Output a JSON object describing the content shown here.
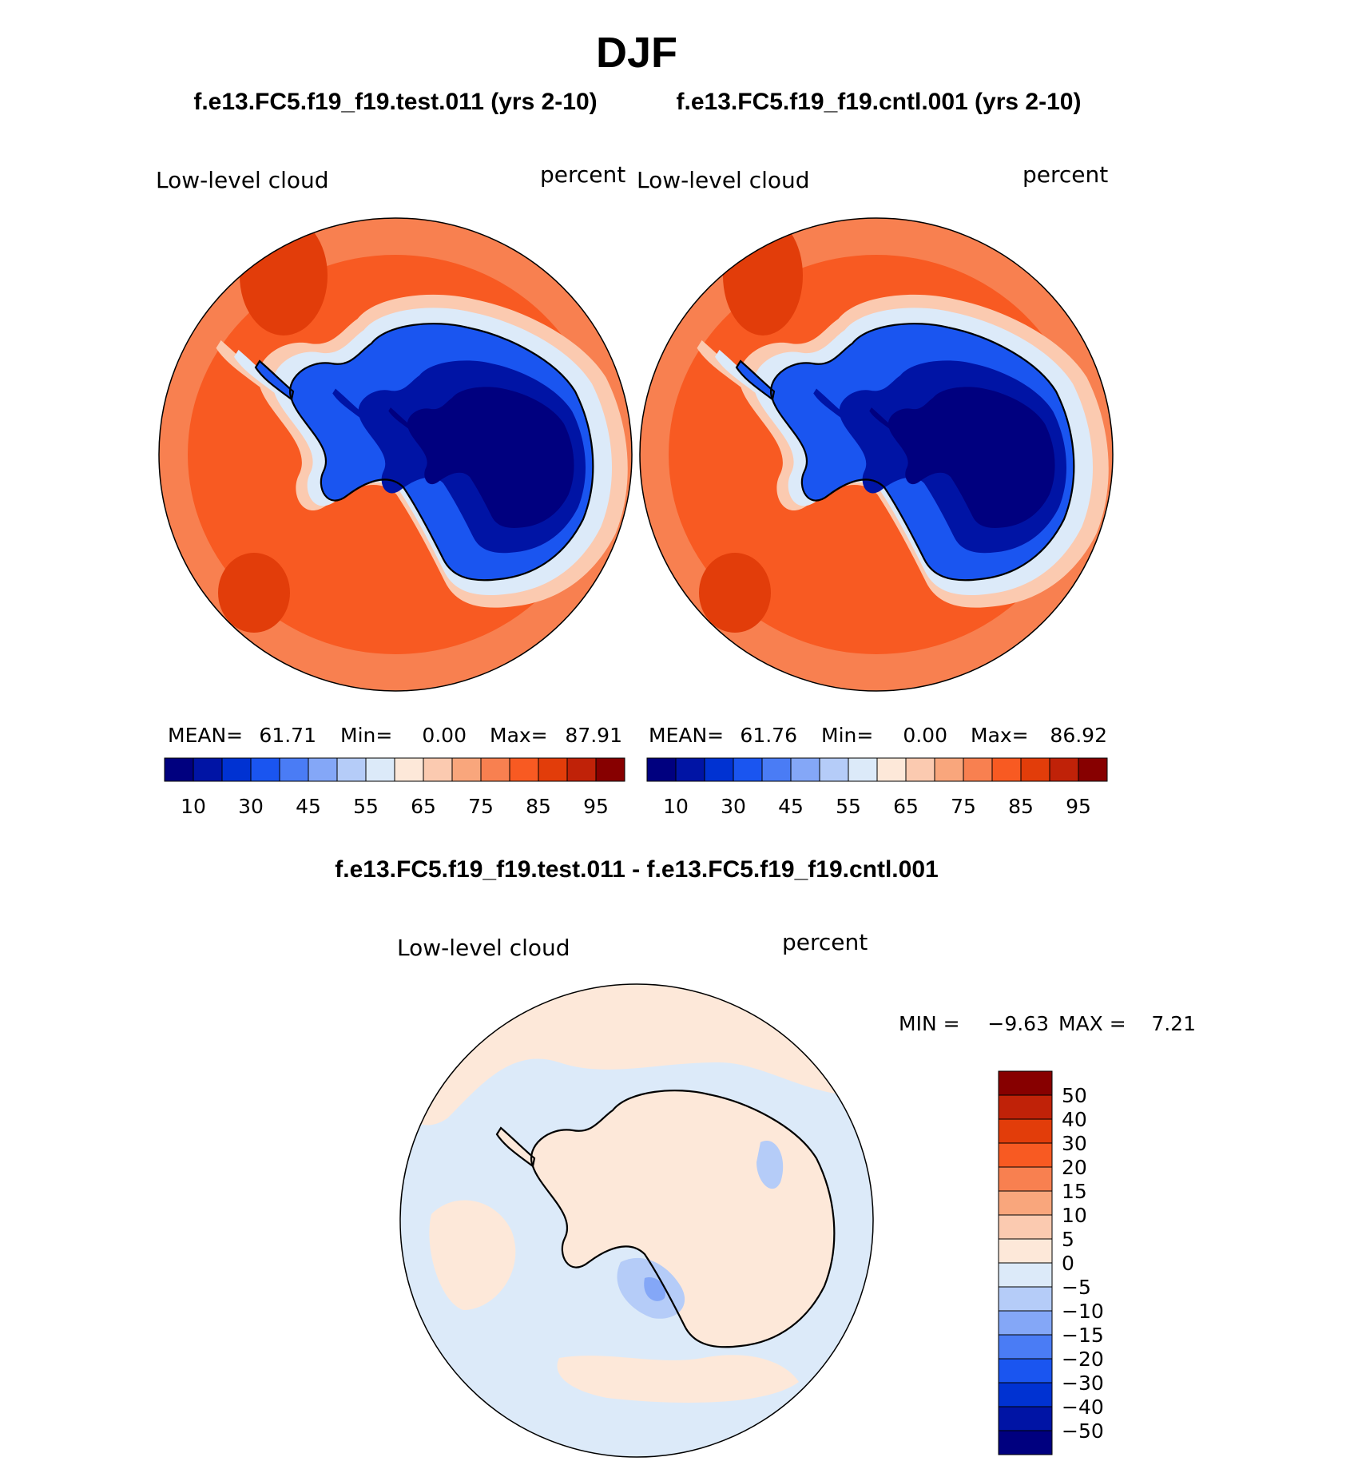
{
  "title": "DJF",
  "panels": [
    {
      "id": "test",
      "case_title": "f.e13.FC5.f19_f19.test.011 (yrs 2-10)",
      "variable": "Low-level cloud",
      "units": "percent",
      "stats": {
        "mean_label": "MEAN=",
        "mean": "61.71",
        "min_label": "Min=",
        "min": "0.00",
        "max_label": "Max=",
        "max": "87.91"
      }
    },
    {
      "id": "cntl",
      "case_title": "f.e13.FC5.f19_f19.cntl.001 (yrs 2-10)",
      "variable": "Low-level cloud",
      "units": "percent",
      "stats": {
        "mean_label": "MEAN=",
        "mean": "61.76",
        "min_label": "Min=",
        "min": "0.00",
        "max_label": "Max=",
        "max": "86.92"
      }
    }
  ],
  "colorbar_abs": {
    "colors": [
      "#00007f",
      "#0014a5",
      "#0032d2",
      "#1a55f0",
      "#4a7cf5",
      "#84a7f7",
      "#b5ccf8",
      "#dceaf9",
      "#fde8d9",
      "#fbcab0",
      "#f9a67c",
      "#f88050",
      "#f85a22",
      "#e23d0a",
      "#c02208",
      "#870000"
    ],
    "labels": [
      "10",
      "30",
      "45",
      "55",
      "65",
      "75",
      "85",
      "95"
    ]
  },
  "difference": {
    "title": "f.e13.FC5.f19_f19.test.011 - f.e13.FC5.f19_f19.cntl.001",
    "variable": "Low-level cloud",
    "units": "percent",
    "min_label": "MIN =",
    "min": "−9.63",
    "max_label": "MAX =",
    "max": "7.21",
    "colorbar": {
      "colors": [
        "#870000",
        "#c02208",
        "#e23d0a",
        "#f85a22",
        "#f88050",
        "#f9a67c",
        "#fbcab0",
        "#fde8d9",
        "#dceaf9",
        "#b5ccf8",
        "#84a7f7",
        "#4a7cf5",
        "#1a55f0",
        "#0032d2",
        "#0014a5",
        "#00007f"
      ],
      "labels": [
        "50",
        "40",
        "30",
        "20",
        "15",
        "10",
        "5",
        "0",
        "−5",
        "−10",
        "−15",
        "−20",
        "−30",
        "−40",
        "−50"
      ]
    }
  },
  "colors": {
    "ocean_high": "#f85a22",
    "ocean_mid": "#f88050",
    "ocean_peak": "#e23d0a",
    "ice_edge": "#fbcab0",
    "ice_edge2": "#dceaf9",
    "land_mid": "#1a55f0",
    "land_deep": "#0014a5",
    "land_core": "#00007f",
    "diff_bg": "#dceaf9",
    "diff_pos": "#fde8d9",
    "diff_neg": "#b5ccf8",
    "diff_neg2": "#84a7f7"
  }
}
